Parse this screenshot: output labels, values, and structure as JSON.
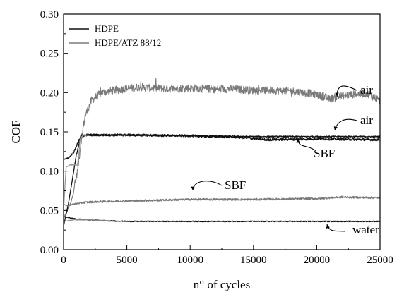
{
  "chart_data": {
    "type": "line",
    "xlabel": "n° of cycles",
    "ylabel": "COF",
    "xlim": [
      0,
      25000
    ],
    "ylim": [
      0.0,
      0.3
    ],
    "xticks": [
      0,
      5000,
      10000,
      15000,
      20000,
      25000
    ],
    "yticks": [
      0.0,
      0.05,
      0.1,
      0.15,
      0.2,
      0.25,
      0.3
    ],
    "x_tick_labels": [
      "0",
      "5000",
      "10000",
      "15000",
      "20000",
      "25000"
    ],
    "y_tick_labels": [
      "0.00",
      "0.05",
      "0.10",
      "0.15",
      "0.20",
      "0.25",
      "0.30"
    ],
    "grid": false,
    "legend": {
      "position": "top-left",
      "entries": [
        {
          "label": "HDPE",
          "color": "#111111"
        },
        {
          "label": "HDPE/ATZ 88/12",
          "color": "#7a7a7a"
        }
      ]
    },
    "series": [
      {
        "material": "HDPE/ATZ 88/12",
        "medium": "air",
        "color": "#7a7a7a",
        "noise": 0.005,
        "x": [
          0,
          600,
          1100,
          1400,
          1700,
          2200,
          3000,
          4000,
          5000,
          6000,
          7000,
          8000,
          9000,
          10000,
          11000,
          12000,
          13000,
          14000,
          15000,
          16000,
          17000,
          18000,
          19000,
          20000,
          21000,
          22000,
          23000,
          24000,
          25000
        ],
        "y": [
          0.04,
          0.06,
          0.1,
          0.14,
          0.17,
          0.19,
          0.2,
          0.203,
          0.205,
          0.207,
          0.206,
          0.205,
          0.205,
          0.206,
          0.205,
          0.204,
          0.205,
          0.204,
          0.203,
          0.203,
          0.203,
          0.202,
          0.2,
          0.198,
          0.192,
          0.196,
          0.198,
          0.199,
          0.19
        ]
      },
      {
        "material": "HDPE",
        "medium": "air",
        "color": "#111111",
        "noise": 0.0008,
        "x": [
          0,
          400,
          800,
          1000,
          1300,
          1600,
          2000,
          3000,
          5000,
          10000,
          15000,
          20000,
          25000
        ],
        "y": [
          0.03,
          0.06,
          0.1,
          0.12,
          0.14,
          0.145,
          0.146,
          0.146,
          0.146,
          0.145,
          0.144,
          0.144,
          0.144
        ]
      },
      {
        "material": "HDPE",
        "medium": "SBF",
        "color": "#111111",
        "noise": 0.0015,
        "x": [
          0,
          400,
          800,
          1100,
          1400,
          1700,
          2200,
          3000,
          5000,
          10000,
          12000,
          14000,
          16000,
          20000,
          25000
        ],
        "y": [
          0.115,
          0.117,
          0.124,
          0.135,
          0.145,
          0.146,
          0.146,
          0.146,
          0.146,
          0.145,
          0.144,
          0.143,
          0.14,
          0.141,
          0.14
        ]
      },
      {
        "material": "HDPE/ATZ 88/12",
        "medium": "air",
        "color": "#9a9a9a",
        "noise": 0.0008,
        "x": [
          0,
          200,
          500,
          800,
          1000,
          1100,
          1200,
          1300,
          1500,
          1700,
          2000
        ],
        "y": [
          0.05,
          0.105,
          0.108,
          0.108,
          0.108,
          0.108,
          0.12,
          0.14,
          0.145,
          0.146,
          0.146
        ]
      },
      {
        "material": "HDPE/ATZ 88/12",
        "medium": "SBF",
        "color": "#7a7a7a",
        "noise": 0.0012,
        "x": [
          0,
          300,
          800,
          1500,
          2500,
          5000,
          10000,
          15000,
          20000,
          22000,
          25000
        ],
        "y": [
          0.058,
          0.056,
          0.058,
          0.06,
          0.061,
          0.062,
          0.064,
          0.064,
          0.065,
          0.067,
          0.066
        ]
      },
      {
        "material": "HDPE",
        "medium": "water",
        "color": "#111111",
        "noise": 0.0006,
        "x": [
          0,
          1000,
          3000,
          5000,
          10000,
          15000,
          20000,
          25000
        ],
        "y": [
          0.042,
          0.039,
          0.037,
          0.036,
          0.036,
          0.036,
          0.036,
          0.036
        ]
      },
      {
        "material": "HDPE/ATZ 88/12",
        "medium": "water",
        "color": "#8a8a8a",
        "noise": 0.0004,
        "x": [
          0,
          800,
          2000,
          3000,
          5000
        ],
        "y": [
          0.036,
          0.038,
          0.038,
          0.037,
          0.036
        ]
      }
    ],
    "annotations": [
      {
        "text": "air",
        "x": 23500,
        "y": 0.21
      },
      {
        "text": "air",
        "x": 23500,
        "y": 0.154
      },
      {
        "text": "SBF",
        "x": 20000,
        "y": 0.123
      },
      {
        "text": "SBF",
        "x": 14000,
        "y": 0.08
      },
      {
        "text": "water",
        "x": 23500,
        "y": 0.019
      }
    ]
  }
}
